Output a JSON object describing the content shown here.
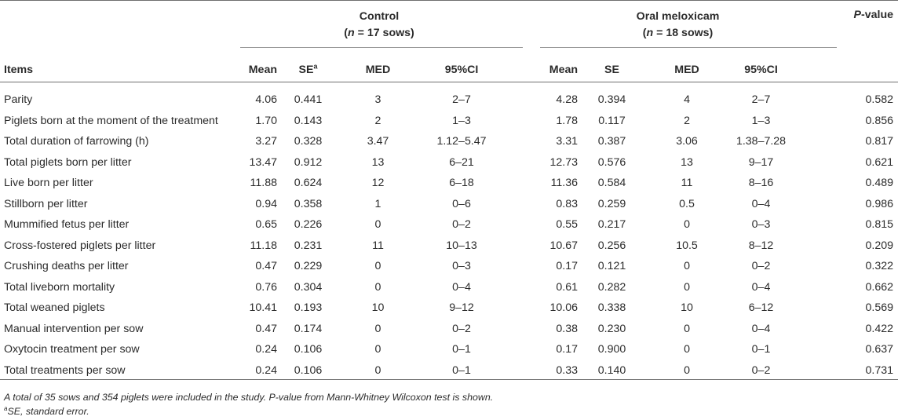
{
  "header": {
    "control_title": "Control",
    "control_n": "(n = 17 sows)",
    "control_n_parts": {
      "open": "(",
      "n": "n",
      "rest": " = 17 sows)"
    },
    "meloxicam_title": "Oral meloxicam",
    "meloxicam_n_parts": {
      "open": "(",
      "n": "n",
      "rest": " = 18 sows)"
    },
    "pvalue_parts": {
      "p": "P",
      "rest": "-value"
    },
    "items": "Items",
    "mean": "Mean",
    "se_a": "SE",
    "se_sup": "a",
    "med": "MED",
    "ci": "95%CI",
    "se": "SE"
  },
  "rows": [
    {
      "item": "Parity",
      "c_mean": "4.06",
      "c_se": "0.441",
      "c_med": "3",
      "c_ci": "2–7",
      "m_mean": "4.28",
      "m_se": "0.394",
      "m_med": "4",
      "m_ci": "2–7",
      "p": "0.582"
    },
    {
      "item": "Piglets born at the moment of the treatment",
      "c_mean": "1.70",
      "c_se": "0.143",
      "c_med": "2",
      "c_ci": "1–3",
      "m_mean": "1.78",
      "m_se": "0.117",
      "m_med": "2",
      "m_ci": "1–3",
      "p": "0.856"
    },
    {
      "item": "Total duration of farrowing (h)",
      "c_mean": "3.27",
      "c_se": "0.328",
      "c_med": "3.47",
      "c_ci": "1.12–5.47",
      "m_mean": "3.31",
      "m_se": "0.387",
      "m_med": "3.06",
      "m_ci": "1.38–7.28",
      "p": "0.817"
    },
    {
      "item": "Total piglets born per litter",
      "c_mean": "13.47",
      "c_se": "0.912",
      "c_med": "13",
      "c_ci": "6–21",
      "m_mean": "12.73",
      "m_se": "0.576",
      "m_med": "13",
      "m_ci": "9–17",
      "p": "0.621"
    },
    {
      "item": "Live born per litter",
      "c_mean": "11.88",
      "c_se": "0.624",
      "c_med": "12",
      "c_ci": "6–18",
      "m_mean": "11.36",
      "m_se": "0.584",
      "m_med": "11",
      "m_ci": "8–16",
      "p": "0.489"
    },
    {
      "item": "Stillborn per litter",
      "c_mean": "0.94",
      "c_se": "0.358",
      "c_med": "1",
      "c_ci": "0–6",
      "m_mean": "0.83",
      "m_se": "0.259",
      "m_med": "0.5",
      "m_ci": "0–4",
      "p": "0.986"
    },
    {
      "item": "Mummified fetus per litter",
      "c_mean": "0.65",
      "c_se": "0.226",
      "c_med": "0",
      "c_ci": "0–2",
      "m_mean": "0.55",
      "m_se": "0.217",
      "m_med": "0",
      "m_ci": "0–3",
      "p": "0.815"
    },
    {
      "item": "Cross-fostered piglets per litter",
      "c_mean": "11.18",
      "c_se": "0.231",
      "c_med": "11",
      "c_ci": "10–13",
      "m_mean": "10.67",
      "m_se": "0.256",
      "m_med": "10.5",
      "m_ci": "8–12",
      "p": "0.209"
    },
    {
      "item": "Crushing deaths per litter",
      "c_mean": "0.47",
      "c_se": "0.229",
      "c_med": "0",
      "c_ci": "0–3",
      "m_mean": "0.17",
      "m_se": "0.121",
      "m_med": "0",
      "m_ci": "0–2",
      "p": "0.322"
    },
    {
      "item": "Total liveborn mortality",
      "c_mean": "0.76",
      "c_se": "0.304",
      "c_med": "0",
      "c_ci": "0–4",
      "m_mean": "0.61",
      "m_se": "0.282",
      "m_med": "0",
      "m_ci": "0–4",
      "p": "0.662"
    },
    {
      "item": "Total weaned piglets",
      "c_mean": "10.41",
      "c_se": "0.193",
      "c_med": "10",
      "c_ci": "9–12",
      "m_mean": "10.06",
      "m_se": "0.338",
      "m_med": "10",
      "m_ci": "6–12",
      "p": "0.569"
    },
    {
      "item": "Manual intervention per sow",
      "c_mean": "0.47",
      "c_se": "0.174",
      "c_med": "0",
      "c_ci": "0–2",
      "m_mean": "0.38",
      "m_se": "0.230",
      "m_med": "0",
      "m_ci": "0–4",
      "p": "0.422"
    },
    {
      "item": "Oxytocin treatment per sow",
      "c_mean": "0.24",
      "c_se": "0.106",
      "c_med": "0",
      "c_ci": "0–1",
      "m_mean": "0.17",
      "m_se": "0.900",
      "m_med": "0",
      "m_ci": "0–1",
      "p": "0.637"
    },
    {
      "item": "Total treatments per sow",
      "c_mean": "0.24",
      "c_se": "0.106",
      "c_med": "0",
      "c_ci": "0–1",
      "m_mean": "0.33",
      "m_se": "0.140",
      "m_med": "0",
      "m_ci": "0–2",
      "p": "0.731"
    }
  ],
  "notes": {
    "line1": "A total of 35 sows and 354 piglets were included in the study. P-value from Mann-Whitney Wilcoxon test is shown.",
    "line2_sup": "a",
    "line2": "SE, standard error."
  }
}
